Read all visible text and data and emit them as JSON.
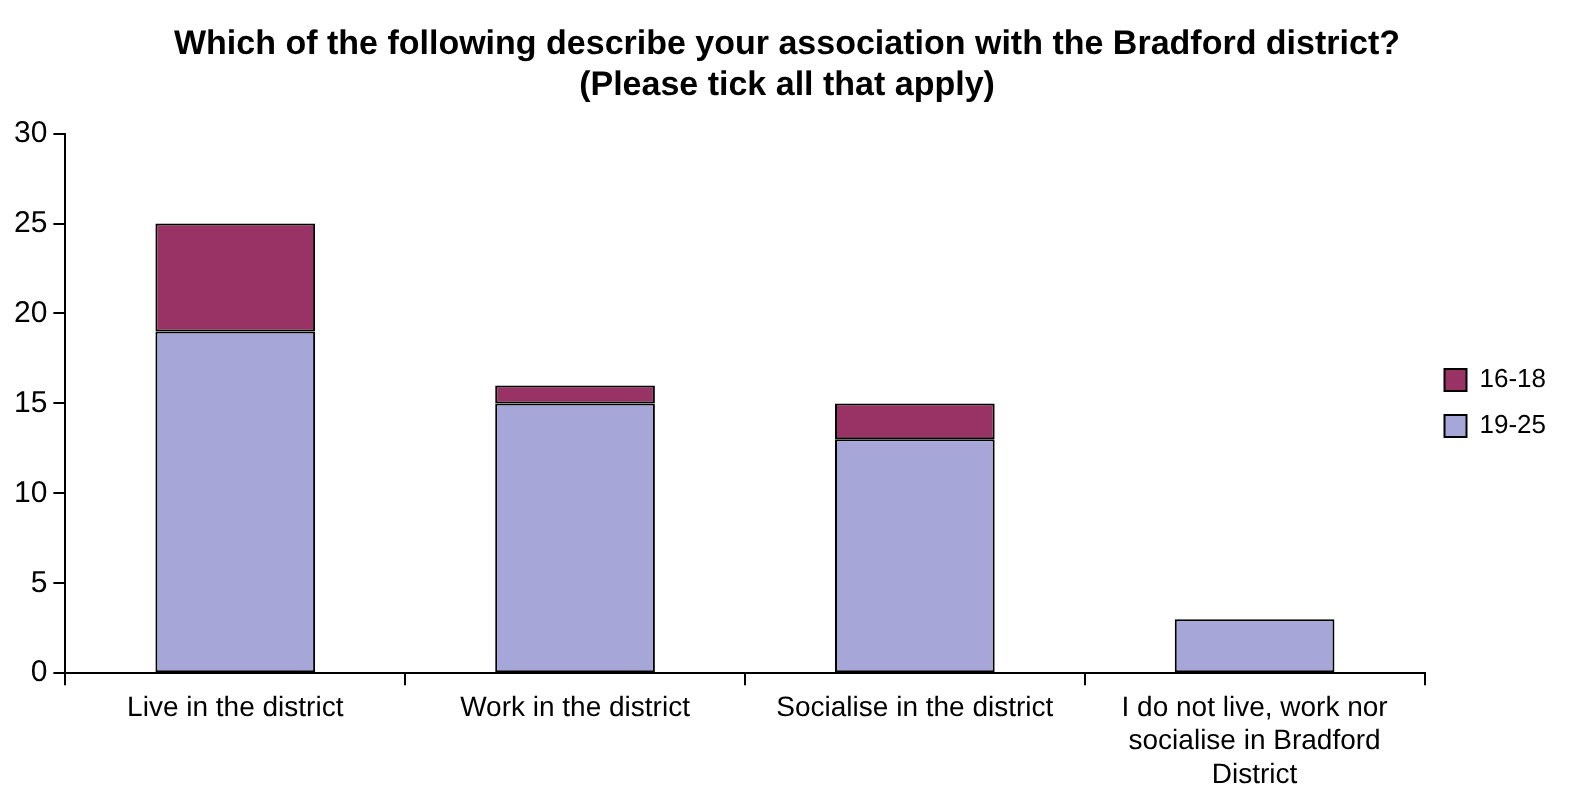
{
  "chart_data": {
    "type": "bar",
    "title": "Which of the following describe your association with the Bradford district? (Please tick all that apply)",
    "categories": [
      "Live in the district",
      "Work in the district",
      "Socialise in the district",
      "I do not live, work nor socialise in Bradford District"
    ],
    "stacked": true,
    "series": [
      {
        "name": "19-25",
        "color": "#a6a6d8",
        "values": [
          19,
          15,
          13,
          3
        ]
      },
      {
        "name": "16-18",
        "color": "#993366",
        "values": [
          6,
          1,
          2,
          0
        ]
      }
    ],
    "ylim": [
      0,
      30
    ],
    "yticks": [
      0,
      5,
      10,
      15,
      20,
      25,
      30
    ],
    "grid": false,
    "legend": "right"
  }
}
